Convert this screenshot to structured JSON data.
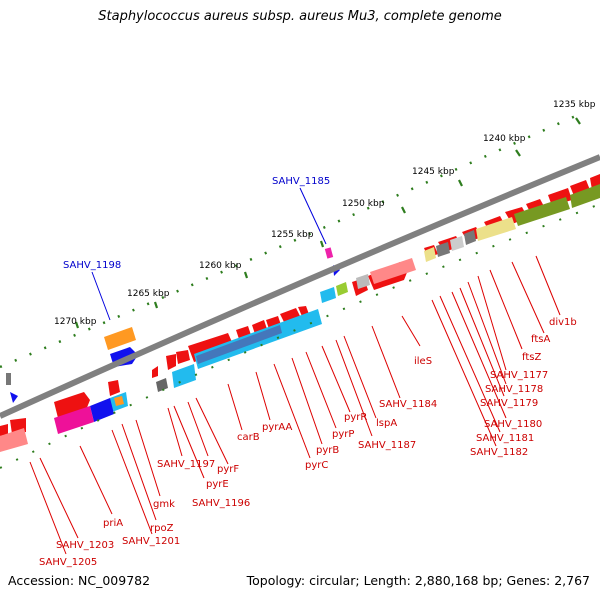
{
  "title": "Staphylococcus aureus subsp. aureus Mu3, complete genome",
  "footer": {
    "accession": "Accession: NC_009782",
    "summary": "Topology: circular; Length: 2,880,168 bp; Genes: 2,767"
  },
  "scale_labels": [
    "1235 kbp",
    "1240 kbp",
    "1245 kbp",
    "1250 kbp",
    "1255 kbp",
    "1260 kbp",
    "1265 kbp",
    "1270 kbp"
  ],
  "blue_labels": [
    "SAHV_1185",
    "SAHV_1198"
  ],
  "gene_labels": [
    "div1b",
    "ftsA",
    "ftsZ",
    "SAHV_1177",
    "SAHV_1178",
    "SAHV_1179",
    "SAHV_1180",
    "SAHV_1181",
    "SAHV_1182",
    "ileS",
    "SAHV_1184",
    "lspA",
    "SAHV_1187",
    "pyrR",
    "pyrP",
    "pyrB",
    "pyrC",
    "pyrAA",
    "carB",
    "pyrF",
    "SAHV_1197",
    "pyrE",
    "SAHV_1196",
    "gmk",
    "rpoZ",
    "SAHV_1201",
    "priA",
    "SAHV_1203",
    "SAHV_1205"
  ],
  "colors": {
    "gene": "#ee1111",
    "label": "#cc0000",
    "blue_label": "#0000cc",
    "backbone": "#808080",
    "tick": "#2e7d1e",
    "cyan": "#22bbee",
    "olive": "#779922",
    "pink": "#ee66aa",
    "orange": "#ff9922",
    "blue": "#1111ee"
  }
}
